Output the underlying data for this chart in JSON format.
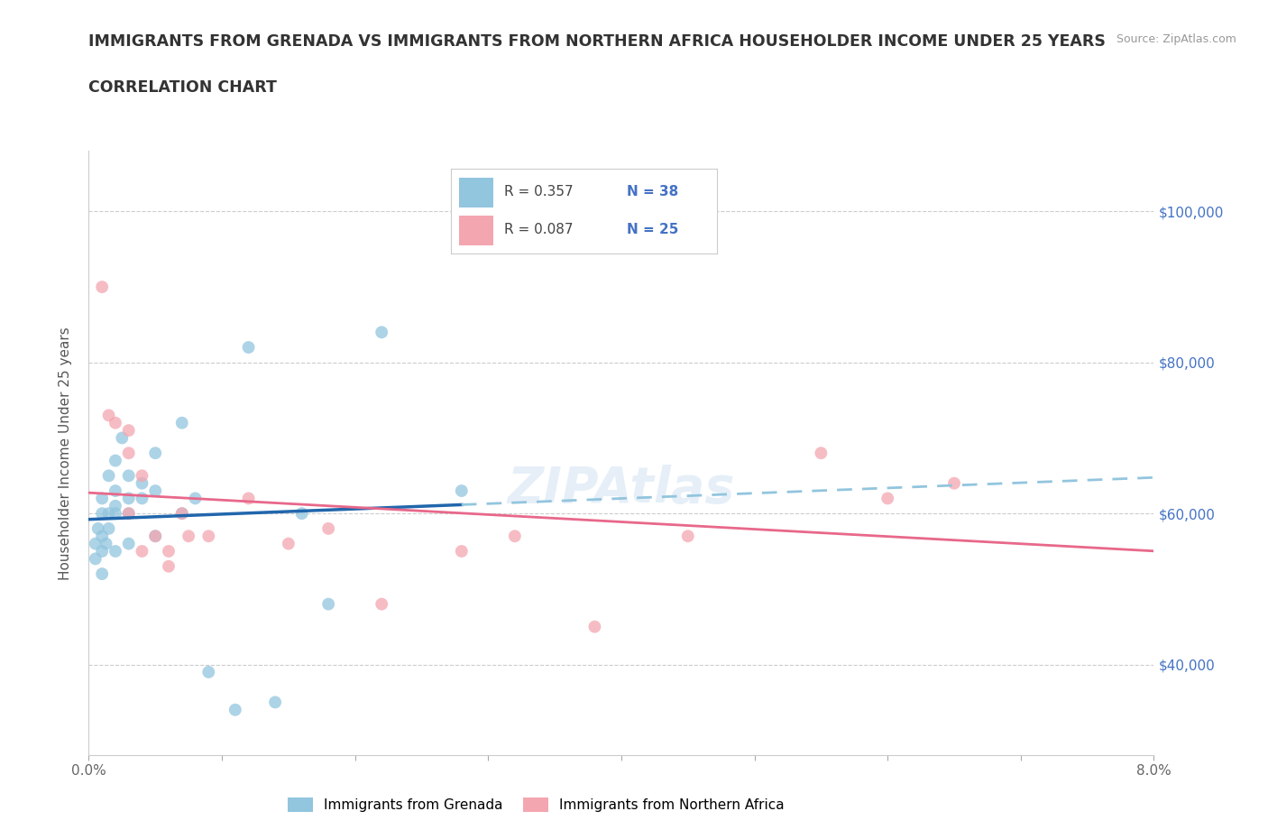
{
  "title_line1": "IMMIGRANTS FROM GRENADA VS IMMIGRANTS FROM NORTHERN AFRICA HOUSEHOLDER INCOME UNDER 25 YEARS",
  "title_line2": "CORRELATION CHART",
  "source_text": "Source: ZipAtlas.com",
  "ylabel": "Householder Income Under 25 years",
  "xlim": [
    0.0,
    0.08
  ],
  "ylim": [
    28000,
    108000
  ],
  "xticks": [
    0.0,
    0.01,
    0.02,
    0.03,
    0.04,
    0.05,
    0.06,
    0.07,
    0.08
  ],
  "xtick_labels": [
    "0.0%",
    "",
    "",
    "",
    "",
    "",
    "",
    "",
    "8.0%"
  ],
  "ytick_positions": [
    40000,
    60000,
    80000,
    100000
  ],
  "ytick_labels": [
    "$40,000",
    "$60,000",
    "$80,000",
    "$100,000"
  ],
  "grenada_color": "#92c5de",
  "northern_africa_color": "#f4a6b0",
  "trend_grenada_solid_color": "#2166ac",
  "trend_grenada_dash_color": "#92c5de",
  "trend_na_color": "#e8688a",
  "legend_r_grenada": "R = 0.357",
  "legend_n_grenada": "N = 38",
  "legend_r_na": "R = 0.087",
  "legend_n_na": "N = 25",
  "watermark": "ZIPAtlas",
  "grenada_x": [
    0.0005,
    0.0005,
    0.0007,
    0.001,
    0.001,
    0.001,
    0.001,
    0.001,
    0.0013,
    0.0015,
    0.0015,
    0.0015,
    0.002,
    0.002,
    0.002,
    0.002,
    0.002,
    0.0025,
    0.003,
    0.003,
    0.003,
    0.003,
    0.004,
    0.004,
    0.005,
    0.005,
    0.005,
    0.007,
    0.007,
    0.008,
    0.009,
    0.011,
    0.012,
    0.014,
    0.016,
    0.018,
    0.022,
    0.028
  ],
  "grenada_y": [
    56000,
    54000,
    58000,
    52000,
    57000,
    60000,
    62000,
    55000,
    56000,
    58000,
    60000,
    65000,
    61000,
    63000,
    67000,
    60000,
    55000,
    70000,
    62000,
    65000,
    60000,
    56000,
    64000,
    62000,
    68000,
    63000,
    57000,
    72000,
    60000,
    62000,
    39000,
    34000,
    82000,
    35000,
    60000,
    48000,
    84000,
    63000
  ],
  "na_x": [
    0.001,
    0.0015,
    0.002,
    0.003,
    0.003,
    0.003,
    0.004,
    0.004,
    0.005,
    0.006,
    0.006,
    0.007,
    0.0075,
    0.009,
    0.012,
    0.015,
    0.018,
    0.022,
    0.028,
    0.032,
    0.038,
    0.045,
    0.055,
    0.06,
    0.065
  ],
  "na_y": [
    90000,
    73000,
    72000,
    71000,
    68000,
    60000,
    65000,
    55000,
    57000,
    55000,
    53000,
    60000,
    57000,
    57000,
    62000,
    56000,
    58000,
    48000,
    55000,
    57000,
    45000,
    57000,
    68000,
    62000,
    64000
  ]
}
